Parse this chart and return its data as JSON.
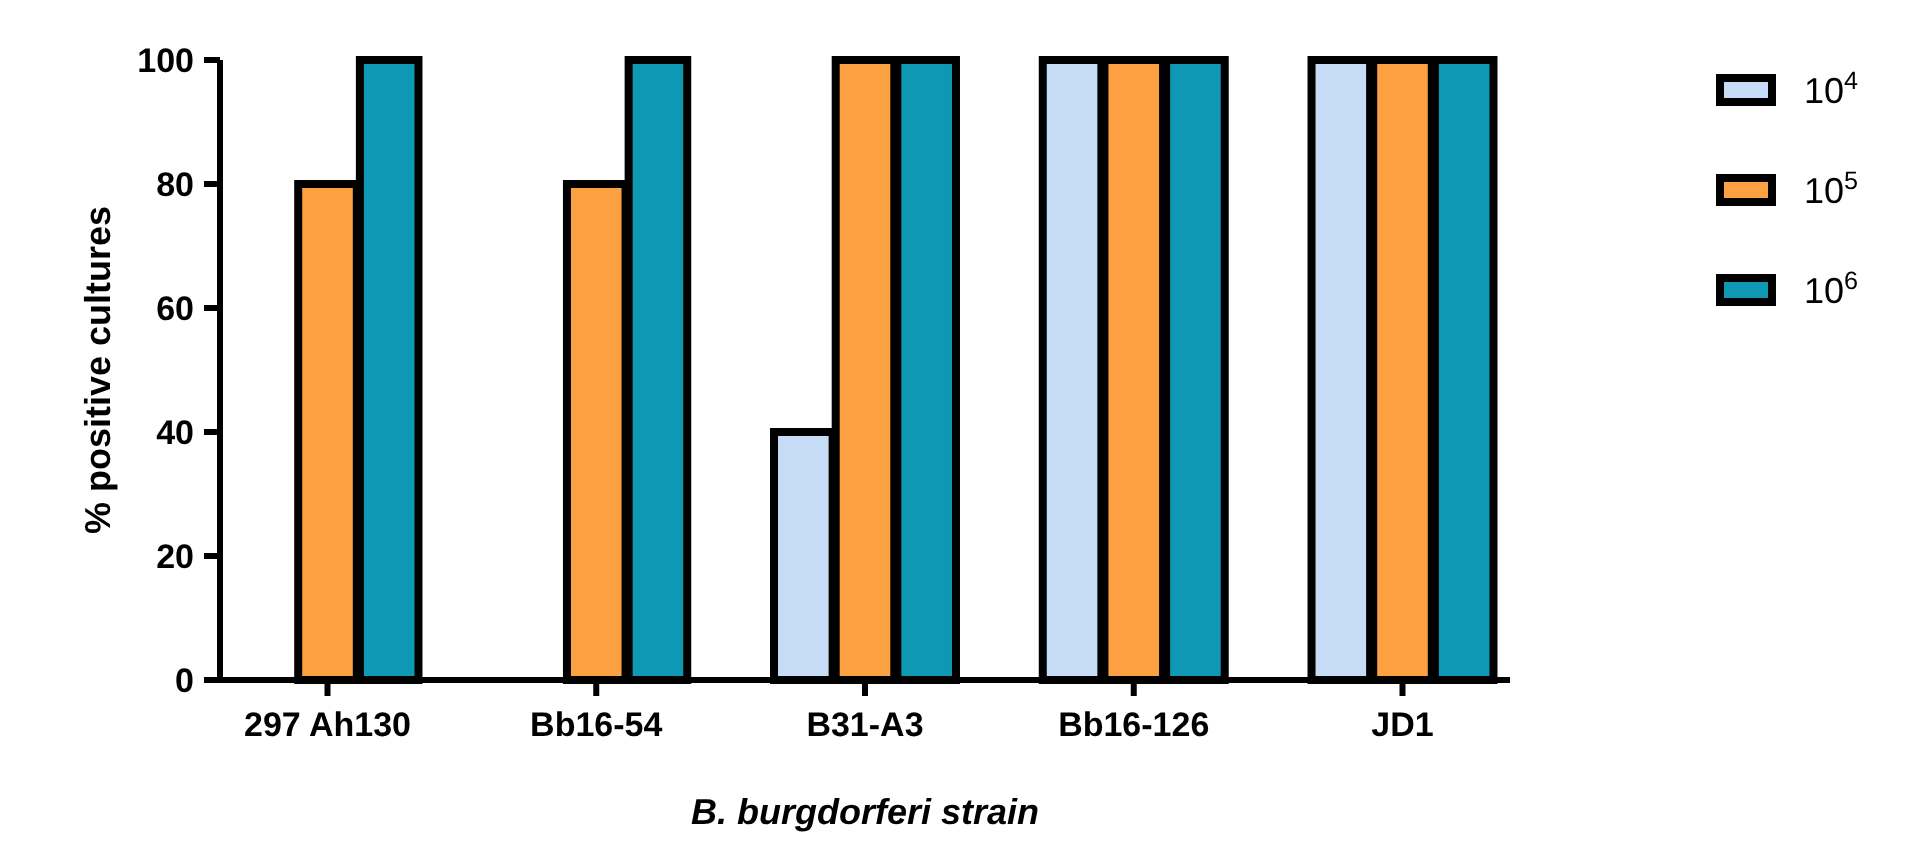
{
  "chart_data": {
    "type": "bar",
    "xlabel": "B. burgdorferi strain",
    "ylabel": "% positive cultures",
    "categories": [
      "297 Ah130",
      "Bb16-54",
      "B31-A3",
      "Bb16-126",
      "JD1"
    ],
    "series": [
      {
        "name": "10$^{4}$",
        "color": "#c6dcf6",
        "values": [
          0,
          0,
          40,
          100,
          100
        ]
      },
      {
        "name": "10$^{5}$",
        "color": "#fca041",
        "values": [
          80,
          80,
          100,
          100,
          100
        ]
      },
      {
        "name": "10$^{6}$",
        "color": "#0f98b3",
        "values": [
          100,
          100,
          100,
          100,
          100
        ]
      }
    ],
    "ylim": [
      0,
      100
    ],
    "yticks": [
      0,
      20,
      40,
      60,
      80,
      100
    ],
    "grid": false,
    "legend": "right"
  }
}
